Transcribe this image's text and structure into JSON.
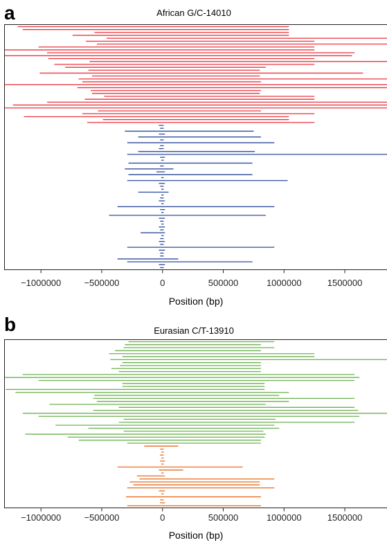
{
  "panels": [
    {
      "letter": "a",
      "chart_data": {
        "type": "haplotype-extent",
        "title": "African G/C-14010",
        "xlabel": "Position (bp)",
        "xlim": [
          -1300000,
          1850000
        ],
        "xticks": [
          -1000000,
          -500000,
          0,
          500000,
          1000000,
          1500000
        ],
        "xtick_labels": [
          "−1000000",
          "−500000",
          "0",
          "500000",
          "1000000",
          "1500000"
        ],
        "series": [
          {
            "color": "#e8333b",
            "haplotypes": [
              [
                -1190000,
                1040000
              ],
              [
                -1150000,
                1040000
              ],
              [
                -560000,
                1040000
              ],
              [
                -740000,
                1040000
              ],
              [
                -460000,
                1850000
              ],
              [
                -630000,
                1250000
              ],
              [
                -540000,
                1850000
              ],
              [
                -1020000,
                1250000
              ],
              [
                -1300000,
                1250000
              ],
              [
                -950000,
                1580000
              ],
              [
                -1300000,
                1560000
              ],
              [
                -940000,
                1250000
              ],
              [
                -600000,
                1850000
              ],
              [
                -890000,
                1250000
              ],
              [
                -800000,
                850000
              ],
              [
                -610000,
                800000
              ],
              [
                -1010000,
                1650000
              ],
              [
                -580000,
                800000
              ],
              [
                -690000,
                1850000
              ],
              [
                -660000,
                810000
              ],
              [
                -1300000,
                1850000
              ],
              [
                -700000,
                1850000
              ],
              [
                -590000,
                810000
              ],
              [
                -580000,
                800000
              ],
              [
                -480000,
                1250000
              ],
              [
                -640000,
                1250000
              ],
              [
                -950000,
                1850000
              ],
              [
                -1230000,
                1850000
              ],
              [
                -1300000,
                1850000
              ],
              [
                -530000,
                810000
              ],
              [
                -660000,
                1250000
              ],
              [
                -1140000,
                1040000
              ],
              [
                -490000,
                1040000
              ],
              [
                -620000,
                1250000
              ]
            ]
          },
          {
            "color": "#2d4a9a",
            "haplotypes": [
              [
                -30000,
                10000
              ],
              [
                -20000,
                10000
              ],
              [
                -310000,
                750000
              ],
              [
                -30000,
                20000
              ],
              [
                -200000,
                810000
              ],
              [
                -20000,
                10000
              ],
              [
                -290000,
                920000
              ],
              [
                -20000,
                10000
              ],
              [
                -30000,
                10000
              ],
              [
                -200000,
                760000
              ],
              [
                -290000,
                1850000
              ],
              [
                -20000,
                20000
              ],
              [
                -10000,
                10000
              ],
              [
                -280000,
                740000
              ],
              [
                -20000,
                10000
              ],
              [
                -310000,
                90000
              ],
              [
                -50000,
                20000
              ],
              [
                -280000,
                740000
              ],
              [
                -10000,
                10000
              ],
              [
                -290000,
                1030000
              ],
              [
                -30000,
                20000
              ],
              [
                -20000,
                10000
              ],
              [
                -10000,
                10000
              ],
              [
                -200000,
                50000
              ],
              [
                -10000,
                10000
              ],
              [
                -20000,
                10000
              ],
              [
                -30000,
                20000
              ],
              [
                -10000,
                10000
              ],
              [
                -370000,
                920000
              ],
              [
                -20000,
                20000
              ],
              [
                -10000,
                10000
              ],
              [
                -440000,
                850000
              ],
              [
                -30000,
                20000
              ],
              [
                -20000,
                10000
              ],
              [
                -10000,
                10000
              ],
              [
                -30000,
                20000
              ],
              [
                -20000,
                10000
              ],
              [
                -180000,
                20000
              ],
              [
                -10000,
                10000
              ],
              [
                -20000,
                10000
              ],
              [
                -30000,
                20000
              ],
              [
                -20000,
                10000
              ],
              [
                -290000,
                920000
              ],
              [
                -30000,
                20000
              ],
              [
                -20000,
                10000
              ],
              [
                -20000,
                10000
              ],
              [
                -370000,
                130000
              ],
              [
                -290000,
                740000
              ],
              [
                -30000,
                20000
              ],
              [
                -20000,
                10000
              ]
            ]
          }
        ]
      }
    },
    {
      "letter": "b",
      "chart_data": {
        "type": "haplotype-extent",
        "title": "Eurasian C/T-13910",
        "xlabel": "Position (bp)",
        "xlim": [
          -1300000,
          1850000
        ],
        "xticks": [
          -1000000,
          -500000,
          0,
          500000,
          1000000,
          1500000
        ],
        "xtick_labels": [
          "−1000000",
          "−500000",
          "0",
          "500000",
          "1000000",
          "1500000"
        ],
        "series": [
          {
            "color": "#6ab04c",
            "haplotypes": [
              [
                -280000,
                920000
              ],
              [
                -310000,
                810000
              ],
              [
                -320000,
                920000
              ],
              [
                -390000,
                810000
              ],
              [
                -440000,
                1250000
              ],
              [
                -330000,
                1250000
              ],
              [
                -430000,
                1850000
              ],
              [
                -330000,
                810000
              ],
              [
                -350000,
                810000
              ],
              [
                -420000,
                810000
              ],
              [
                -360000,
                810000
              ],
              [
                -1150000,
                1580000
              ],
              [
                -1300000,
                1620000
              ],
              [
                -1020000,
                1580000
              ],
              [
                -330000,
                840000
              ],
              [
                -330000,
                840000
              ],
              [
                -1290000,
                840000
              ],
              [
                -1210000,
                1040000
              ],
              [
                -560000,
                960000
              ],
              [
                -570000,
                1580000
              ],
              [
                -540000,
                1040000
              ],
              [
                -930000,
                850000
              ],
              [
                -360000,
                1580000
              ],
              [
                -570000,
                1610000
              ],
              [
                -1150000,
                1850000
              ],
              [
                -1020000,
                1620000
              ],
              [
                -320000,
                930000
              ],
              [
                -360000,
                1580000
              ],
              [
                -880000,
                920000
              ],
              [
                -610000,
                960000
              ],
              [
                -320000,
                830000
              ],
              [
                -1130000,
                850000
              ],
              [
                -780000,
                840000
              ],
              [
                -690000,
                810000
              ],
              [
                -290000,
                810000
              ]
            ]
          },
          {
            "color": "#e66a1e",
            "haplotypes": [
              [
                -150000,
                130000
              ],
              [
                -20000,
                10000
              ],
              [
                -10000,
                10000
              ],
              [
                -20000,
                10000
              ],
              [
                -10000,
                10000
              ],
              [
                -20000,
                20000
              ],
              [
                -10000,
                10000
              ],
              [
                -370000,
                660000
              ],
              [
                -30000,
                170000
              ],
              [
                -10000,
                10000
              ],
              [
                -210000,
                20000
              ],
              [
                -190000,
                920000
              ],
              [
                -270000,
                800000
              ],
              [
                -240000,
                800000
              ],
              [
                -290000,
                920000
              ],
              [
                -30000,
                20000
              ],
              [
                -10000,
                10000
              ],
              [
                -300000,
                810000
              ],
              [
                -20000,
                10000
              ],
              [
                -20000,
                20000
              ],
              [
                -290000,
                810000
              ]
            ]
          }
        ]
      }
    }
  ]
}
